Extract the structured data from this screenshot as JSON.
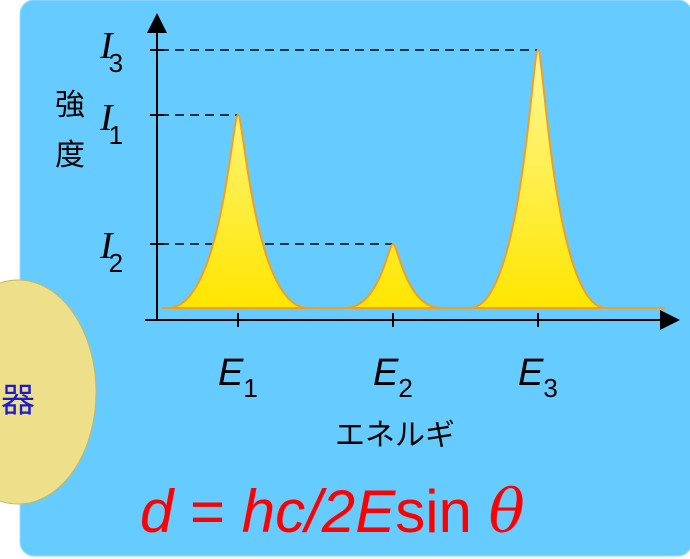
{
  "side_label": "器",
  "y_axis_label": [
    "強",
    "度"
  ],
  "x_axis_label": "エネルギ",
  "intensity_labels": [
    {
      "symbol": "I",
      "subscript": "3"
    },
    {
      "symbol": "I",
      "subscript": "1"
    },
    {
      "symbol": "I",
      "subscript": "2"
    }
  ],
  "energy_labels": [
    {
      "symbol": "E",
      "subscript": "1"
    },
    {
      "symbol": "E",
      "subscript": "2"
    },
    {
      "symbol": "E",
      "subscript": "3"
    }
  ],
  "formula": [
    "d",
    " = ",
    "hc/2",
    "E",
    "sin ",
    "θ"
  ]
}
